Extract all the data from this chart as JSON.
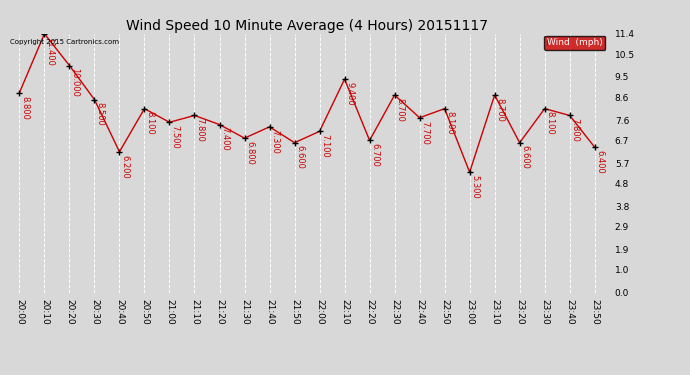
{
  "title": "Wind Speed 10 Minute Average (4 Hours) 20151117",
  "x_labels": [
    "20:00",
    "20:10",
    "20:20",
    "20:30",
    "20:40",
    "20:50",
    "21:00",
    "21:10",
    "21:20",
    "21:30",
    "21:40",
    "21:50",
    "22:00",
    "22:10",
    "22:20",
    "22:30",
    "22:40",
    "22:50",
    "23:00",
    "23:10",
    "23:20",
    "23:30",
    "23:40",
    "23:50"
  ],
  "y_values": [
    8.8,
    11.4,
    10.0,
    8.5,
    6.2,
    8.1,
    7.5,
    7.8,
    7.4,
    6.8,
    7.3,
    6.6,
    7.1,
    9.4,
    6.7,
    8.7,
    7.7,
    8.1,
    5.3,
    8.7,
    6.6,
    8.1,
    7.8,
    6.4
  ],
  "y_labels": [
    0.0,
    1.0,
    1.9,
    2.9,
    3.8,
    4.8,
    5.7,
    6.7,
    7.6,
    8.6,
    9.5,
    10.5,
    11.4
  ],
  "ylim": [
    0.0,
    11.4
  ],
  "line_color": "#cc0000",
  "marker_color": "#000000",
  "bg_color": "#d8d8d8",
  "plot_bg_color": "#d8d8d8",
  "grid_color": "#ffffff",
  "copyright_text": "Copyright 2015 Cartronics.com",
  "legend_label": "Wind  (mph)",
  "legend_bg": "#cc0000",
  "legend_text_color": "#ffffff",
  "title_fontsize": 10,
  "tick_fontsize": 6.5,
  "annotation_fontsize": 6
}
